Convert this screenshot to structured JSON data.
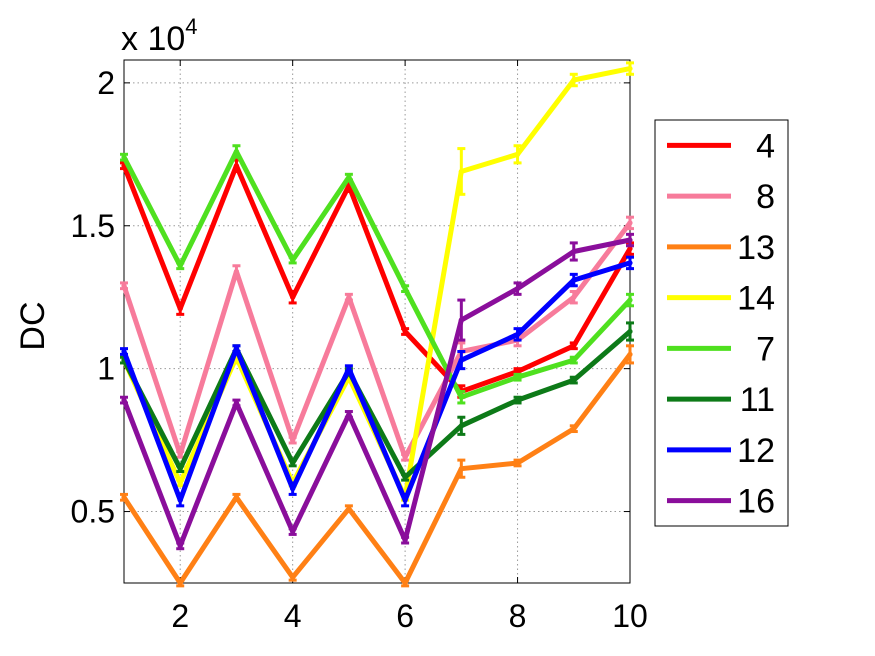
{
  "chart_data": {
    "type": "line",
    "title": "",
    "xlabel": "",
    "ylabel": "DC",
    "exponent_label": "x 10",
    "exponent_power": "4",
    "xlim": [
      1,
      10
    ],
    "ylim": [
      0.25,
      2.08
    ],
    "x_ticks": [
      2,
      4,
      6,
      8,
      10
    ],
    "x_tick_labels": [
      "2",
      "4",
      "6",
      "8",
      "10"
    ],
    "y_ticks": [
      0.5,
      1,
      1.5,
      2
    ],
    "y_tick_labels": [
      "0.5",
      "1",
      "1.5",
      "2"
    ],
    "grid": true,
    "legend_position": "right",
    "x": [
      1,
      2,
      3,
      4,
      5,
      6,
      7,
      8,
      9,
      10
    ],
    "series": [
      {
        "name": "4",
        "color": "#ff0000",
        "values": [
          1.71,
          1.21,
          1.71,
          1.25,
          1.64,
          1.13,
          0.92,
          0.99,
          1.08,
          1.42
        ],
        "err": [
          0.01,
          0.02,
          0.02,
          0.02,
          0.02,
          0.01,
          0.02,
          0.01,
          0.01,
          0.02
        ]
      },
      {
        "name": "8",
        "color": "#f77b9b",
        "values": [
          1.29,
          0.7,
          1.34,
          0.75,
          1.25,
          0.69,
          1.06,
          1.1,
          1.25,
          1.51
        ],
        "err": [
          0.01,
          0.01,
          0.02,
          0.01,
          0.01,
          0.01,
          0.03,
          0.02,
          0.02,
          0.02
        ]
      },
      {
        "name": "13",
        "color": "#ff8015",
        "values": [
          0.55,
          0.25,
          0.55,
          0.27,
          0.51,
          0.25,
          0.65,
          0.67,
          0.79,
          1.05
        ],
        "err": [
          0.01,
          0.01,
          0.01,
          0.01,
          0.01,
          0.01,
          0.03,
          0.01,
          0.01,
          0.03
        ]
      },
      {
        "name": "14",
        "color": "#ffff00",
        "values": [
          1.03,
          0.6,
          1.04,
          0.6,
          0.97,
          0.55,
          1.69,
          1.75,
          2.01,
          2.05
        ],
        "err": [
          0.01,
          0.01,
          0.02,
          0.01,
          0.01,
          0.01,
          0.08,
          0.03,
          0.02,
          0.02
        ]
      },
      {
        "name": "7",
        "color": "#4fe01f",
        "values": [
          1.74,
          1.36,
          1.76,
          1.38,
          1.67,
          1.28,
          0.9,
          0.97,
          1.03,
          1.24
        ],
        "err": [
          0.01,
          0.01,
          0.02,
          0.01,
          0.01,
          0.01,
          0.02,
          0.01,
          0.01,
          0.02
        ]
      },
      {
        "name": "11",
        "color": "#0d7a18",
        "values": [
          1.03,
          0.65,
          1.07,
          0.67,
          0.99,
          0.62,
          0.8,
          0.89,
          0.96,
          1.13
        ],
        "err": [
          0.01,
          0.01,
          0.01,
          0.01,
          0.01,
          0.01,
          0.03,
          0.01,
          0.01,
          0.03
        ]
      },
      {
        "name": "12",
        "color": "#0000ff",
        "values": [
          1.06,
          0.54,
          1.07,
          0.58,
          1.0,
          0.54,
          1.03,
          1.12,
          1.31,
          1.37
        ],
        "err": [
          0.01,
          0.02,
          0.01,
          0.02,
          0.01,
          0.02,
          0.03,
          0.02,
          0.02,
          0.02
        ]
      },
      {
        "name": "16",
        "color": "#8a0e9b",
        "values": [
          0.89,
          0.38,
          0.88,
          0.43,
          0.84,
          0.4,
          1.17,
          1.28,
          1.41,
          1.45
        ],
        "err": [
          0.01,
          0.01,
          0.01,
          0.01,
          0.01,
          0.01,
          0.07,
          0.02,
          0.03,
          0.02
        ]
      }
    ]
  }
}
